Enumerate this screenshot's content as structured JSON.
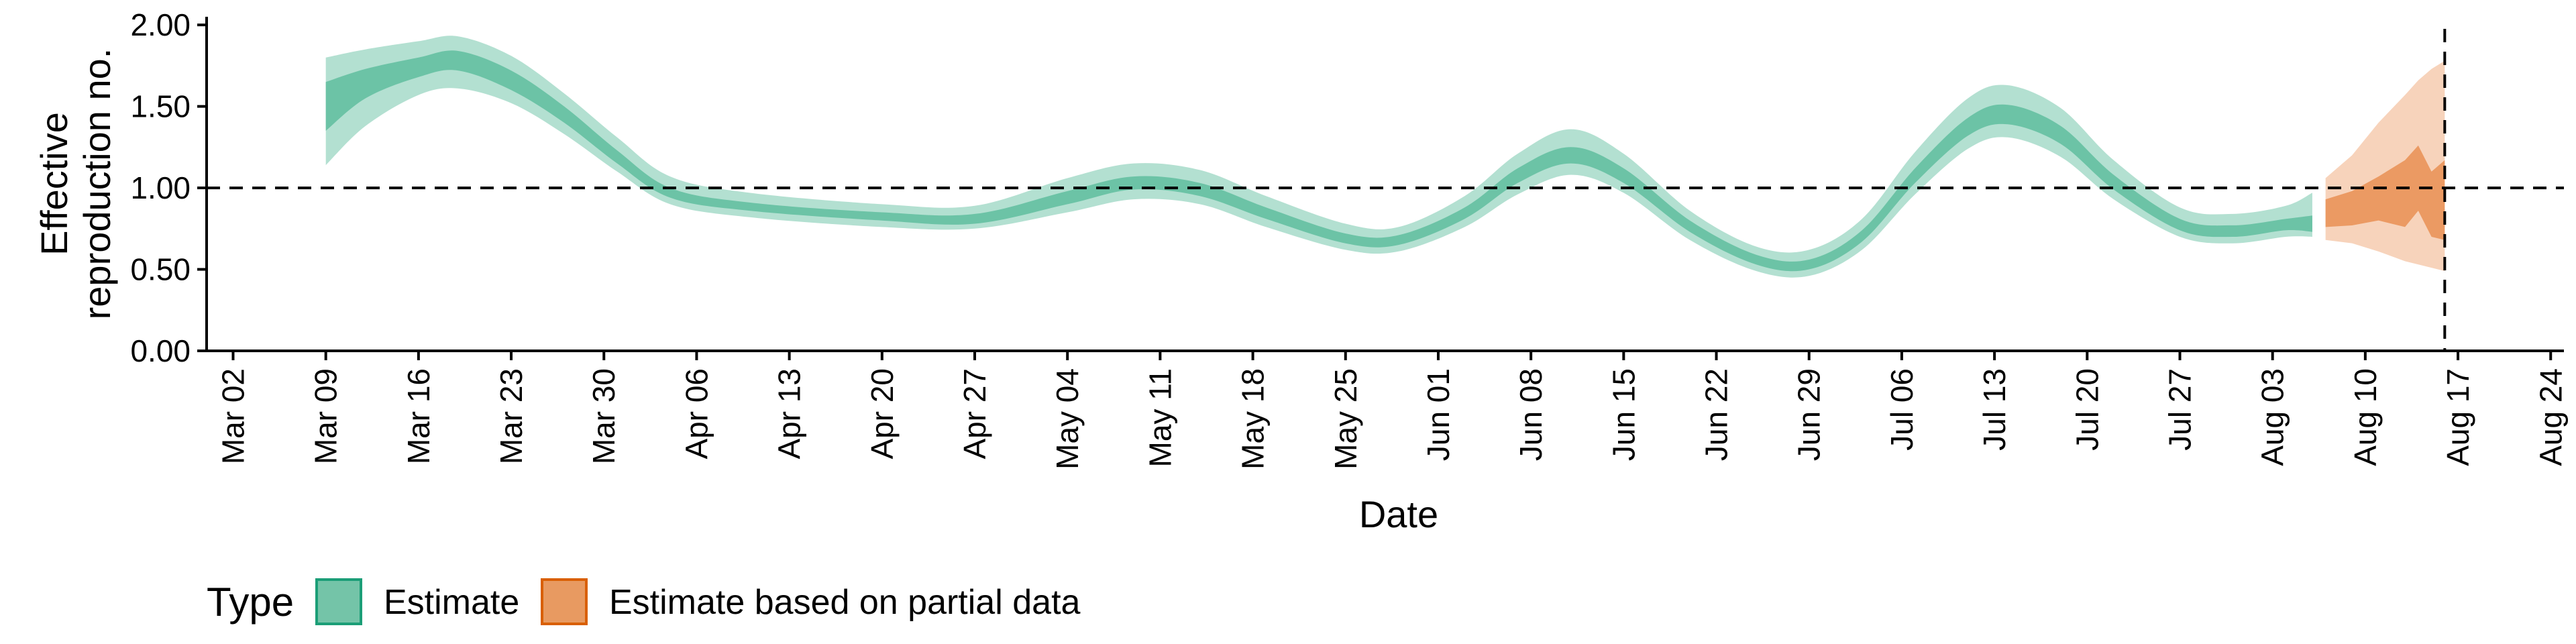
{
  "chart_data": {
    "type": "area",
    "title": "",
    "xlabel": "Date",
    "ylabel": "Effective\nreproduction no.",
    "x_range": [
      "2020-02-29",
      "2020-08-25"
    ],
    "ylim": [
      0,
      2.05
    ],
    "y_ticks": [
      0,
      0.5,
      1,
      1.5,
      2
    ],
    "y_tick_labels": [
      "0.00",
      "0.50",
      "1.00",
      "1.50",
      "2.00"
    ],
    "x_ticks": [
      "2020-03-02",
      "2020-03-09",
      "2020-03-16",
      "2020-03-23",
      "2020-03-30",
      "2020-04-06",
      "2020-04-13",
      "2020-04-20",
      "2020-04-27",
      "2020-05-04",
      "2020-05-11",
      "2020-05-18",
      "2020-05-25",
      "2020-06-01",
      "2020-06-08",
      "2020-06-15",
      "2020-06-22",
      "2020-06-29",
      "2020-07-06",
      "2020-07-13",
      "2020-07-20",
      "2020-07-27",
      "2020-08-03",
      "2020-08-10",
      "2020-08-17",
      "2020-08-24"
    ],
    "x_tick_labels": [
      "Mar 02",
      "Mar 09",
      "Mar 16",
      "Mar 23",
      "Mar 30",
      "Apr 06",
      "Apr 13",
      "Apr 20",
      "Apr 27",
      "May 04",
      "May 11",
      "May 18",
      "May 25",
      "Jun 01",
      "Jun 08",
      "Jun 15",
      "Jun 22",
      "Jun 29",
      "Jul 06",
      "Jul 13",
      "Jul 20",
      "Jul 27",
      "Aug 03",
      "Aug 10",
      "Aug 17",
      "Aug 24"
    ],
    "reference_lines": {
      "horizontal_y": 1.0,
      "vertical_x": "2020-08-16"
    },
    "grid": false,
    "legend": {
      "title": "Type",
      "placement": "bottom-left",
      "entries": [
        "Estimate",
        "Estimate based on partial data"
      ]
    },
    "series": [
      {
        "name": "Estimate",
        "color": "#1b9e77",
        "points": [
          [
            "2020-03-09",
            1.14,
            1.35,
            1.65,
            1.8
          ],
          [
            "2020-03-12",
            1.38,
            1.55,
            1.73,
            1.85
          ],
          [
            "2020-03-16",
            1.57,
            1.68,
            1.8,
            1.9
          ],
          [
            "2020-03-19",
            1.61,
            1.72,
            1.84,
            1.93
          ],
          [
            "2020-03-23",
            1.52,
            1.6,
            1.72,
            1.81
          ],
          [
            "2020-03-27",
            1.33,
            1.4,
            1.5,
            1.58
          ],
          [
            "2020-03-31",
            1.1,
            1.15,
            1.23,
            1.31
          ],
          [
            "2020-04-04",
            0.9,
            0.94,
            1.0,
            1.07
          ],
          [
            "2020-04-10",
            0.82,
            0.86,
            0.91,
            0.97
          ],
          [
            "2020-04-20",
            0.76,
            0.8,
            0.85,
            0.9
          ],
          [
            "2020-04-27",
            0.75,
            0.78,
            0.84,
            0.89
          ],
          [
            "2020-05-04",
            0.85,
            0.9,
            0.98,
            1.06
          ],
          [
            "2020-05-09",
            0.93,
            0.99,
            1.07,
            1.15
          ],
          [
            "2020-05-14",
            0.9,
            0.95,
            1.03,
            1.11
          ],
          [
            "2020-05-19",
            0.76,
            0.81,
            0.88,
            0.95
          ],
          [
            "2020-05-25",
            0.62,
            0.66,
            0.72,
            0.78
          ],
          [
            "2020-05-29",
            0.61,
            0.65,
            0.71,
            0.76
          ],
          [
            "2020-06-03",
            0.76,
            0.81,
            0.88,
            0.95
          ],
          [
            "2020-06-07",
            0.96,
            1.03,
            1.12,
            1.21
          ],
          [
            "2020-06-11",
            1.08,
            1.15,
            1.25,
            1.36
          ],
          [
            "2020-06-15",
            0.97,
            1.03,
            1.12,
            1.21
          ],
          [
            "2020-06-20",
            0.68,
            0.73,
            0.8,
            0.86
          ],
          [
            "2020-06-25",
            0.49,
            0.53,
            0.59,
            0.64
          ],
          [
            "2020-06-29",
            0.46,
            0.5,
            0.56,
            0.62
          ],
          [
            "2020-07-03",
            0.62,
            0.67,
            0.74,
            0.81
          ],
          [
            "2020-07-07",
            0.96,
            1.03,
            1.12,
            1.22
          ],
          [
            "2020-07-11",
            1.24,
            1.32,
            1.43,
            1.55
          ],
          [
            "2020-07-14",
            1.31,
            1.39,
            1.51,
            1.63
          ],
          [
            "2020-07-18",
            1.19,
            1.27,
            1.38,
            1.49
          ],
          [
            "2020-07-22",
            0.93,
            0.99,
            1.08,
            1.17
          ],
          [
            "2020-07-27",
            0.7,
            0.74,
            0.81,
            0.88
          ],
          [
            "2020-07-31",
            0.66,
            0.7,
            0.77,
            0.84
          ],
          [
            "2020-08-04",
            0.7,
            0.74,
            0.81,
            0.89
          ],
          [
            "2020-08-06",
            0.7,
            0.73,
            0.83,
            0.97
          ]
        ]
      },
      {
        "name": "Estimate based on partial data",
        "color": "#d95f02",
        "points": [
          [
            "2020-08-07",
            0.68,
            0.76,
            0.93,
            1.06
          ],
          [
            "2020-08-09",
            0.66,
            0.77,
            0.98,
            1.2
          ],
          [
            "2020-08-11",
            0.61,
            0.8,
            1.07,
            1.4
          ],
          [
            "2020-08-13",
            0.55,
            0.76,
            1.17,
            1.57
          ],
          [
            "2020-08-14",
            0.53,
            0.86,
            1.26,
            1.66
          ],
          [
            "2020-08-15",
            0.51,
            0.7,
            1.1,
            1.73
          ],
          [
            "2020-08-16",
            0.49,
            0.68,
            1.17,
            1.78
          ]
        ]
      }
    ]
  }
}
